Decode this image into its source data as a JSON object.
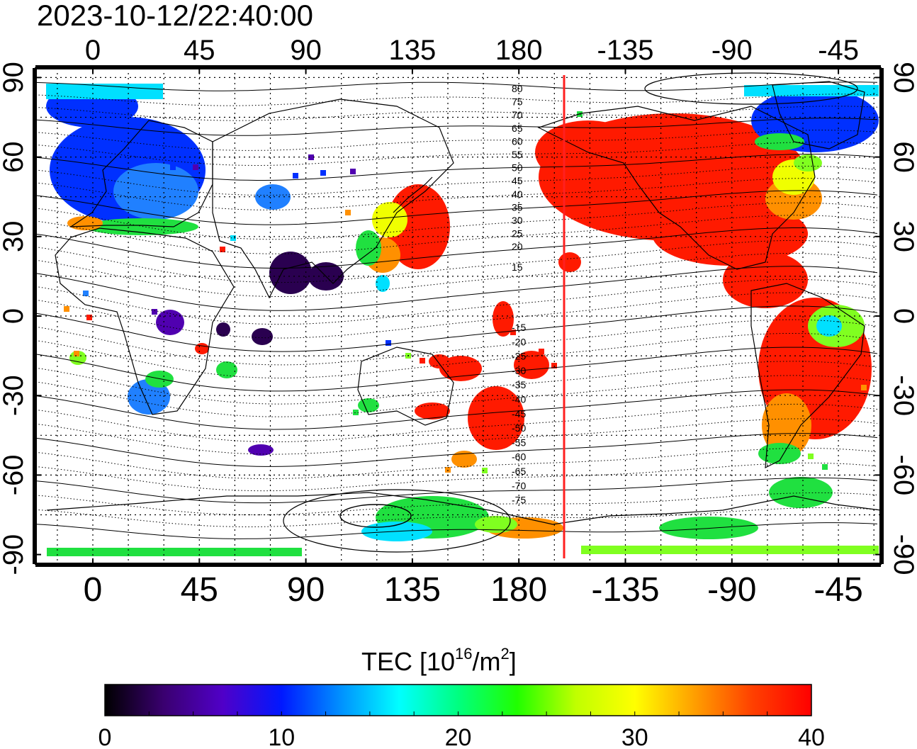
{
  "timestamp": "2023-10-12/22:40:00",
  "map": {
    "top_lon_ticks": [
      "0",
      "45",
      "90",
      "135",
      "180",
      "-135",
      "-90",
      "-45"
    ],
    "bottom_lon_ticks": [
      "0",
      "45",
      "90",
      "135",
      "180",
      "-135",
      "-90",
      "-45"
    ],
    "left_lat_ticks": [
      "90",
      "60",
      "30",
      "0",
      "-30",
      "-60",
      "-90"
    ],
    "right_lat_ticks": [
      "90",
      "60",
      "30",
      "0",
      "-30",
      "-60",
      "-90"
    ],
    "dip_contour_labels_north": [
      "80",
      "75",
      "70",
      "65",
      "60",
      "55",
      "50",
      "45",
      "40",
      "35",
      "30",
      "25",
      "20",
      "15"
    ],
    "dip_contour_labels_south": [
      "-15",
      "-20",
      "-25",
      "-30",
      "-35",
      "-40",
      "-45",
      "-50",
      "-55",
      "-60",
      "-65",
      "-70",
      "-75"
    ],
    "subsolar_marker_color": "#ff2020"
  },
  "colorbar": {
    "label_prefix": "TEC  [10",
    "label_exp1": "16",
    "label_mid": "/m",
    "label_exp2": "2",
    "label_suffix": "]",
    "ticks": [
      "0",
      "10",
      "20",
      "30",
      "40"
    ],
    "colors": [
      "#000000",
      "#3a0070",
      "#5000c8",
      "#0018ff",
      "#0090ff",
      "#00ffff",
      "#00ff80",
      "#20ff00",
      "#c0ff00",
      "#ffff00",
      "#ffa000",
      "#ff4000",
      "#ff0000"
    ]
  }
}
